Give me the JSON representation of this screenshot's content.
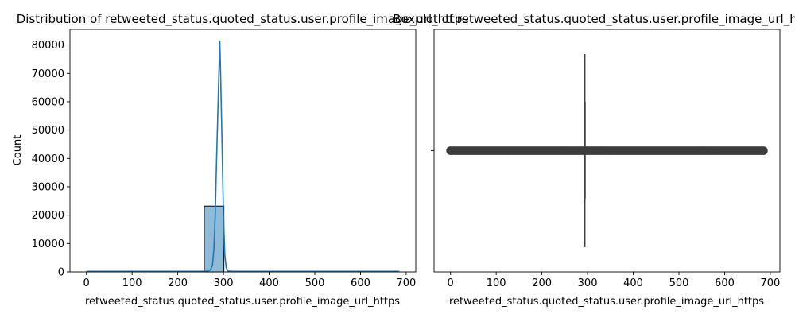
{
  "figure": {
    "background": "#ffffff"
  },
  "chart_data": [
    {
      "type": "bar",
      "subtype": "histogram-with-kde",
      "title": "Distribution of retweeted_status.quoted_status.user.profile_image_url_https",
      "xlabel": "retweeted_status.quoted_status.user.profile_image_url_https",
      "ylabel": "Count",
      "xlim": [
        -36,
        721
      ],
      "ylim": [
        0,
        85500
      ],
      "xticks": [
        0,
        100,
        200,
        300,
        400,
        500,
        600,
        700
      ],
      "yticks": [
        0,
        10000,
        20000,
        30000,
        40000,
        50000,
        60000,
        70000,
        80000
      ],
      "grid": false,
      "bar_color": "#1f77b4",
      "bar_fill_opacity": 0.5,
      "line_color": "#1f77b4",
      "bins": [
        {
          "x0": 0,
          "x1": 43,
          "count": 0
        },
        {
          "x0": 43,
          "x1": 86,
          "count": 0
        },
        {
          "x0": 86,
          "x1": 129,
          "count": 0
        },
        {
          "x0": 129,
          "x1": 172,
          "count": 0
        },
        {
          "x0": 172,
          "x1": 215,
          "count": 0
        },
        {
          "x0": 215,
          "x1": 258,
          "count": 0
        },
        {
          "x0": 258,
          "x1": 301,
          "count": 23200
        },
        {
          "x0": 301,
          "x1": 344,
          "count": 0
        },
        {
          "x0": 344,
          "x1": 387,
          "count": 0
        },
        {
          "x0": 387,
          "x1": 430,
          "count": 0
        },
        {
          "x0": 430,
          "x1": 473,
          "count": 0
        },
        {
          "x0": 473,
          "x1": 516,
          "count": 0
        },
        {
          "x0": 516,
          "x1": 559,
          "count": 0
        },
        {
          "x0": 559,
          "x1": 602,
          "count": 0
        },
        {
          "x0": 602,
          "x1": 645,
          "count": 0
        },
        {
          "x0": 645,
          "x1": 688,
          "count": 0
        }
      ],
      "kde": {
        "x": [
          0,
          100,
          200,
          250,
          265,
          272,
          276,
          279,
          282,
          285,
          288,
          290,
          292,
          294,
          297,
          300,
          303,
          306,
          310,
          320,
          400,
          500,
          600,
          685
        ],
        "y": [
          200,
          200,
          200,
          200,
          250,
          800,
          2500,
          8000,
          20000,
          40000,
          58000,
          70000,
          81500,
          68000,
          45000,
          20000,
          6000,
          1500,
          300,
          200,
          200,
          200,
          200,
          200
        ]
      }
    },
    {
      "type": "boxplot",
      "title": "Boxplot of retweeted_status.quoted_status.user.profile_image_url_https",
      "xlabel": "retweeted_status.quoted_status.user.profile_image_url_https",
      "ylabel": "",
      "xlim": [
        -36,
        721
      ],
      "xticks": [
        0,
        100,
        200,
        300,
        400,
        500,
        600,
        700
      ],
      "grid": false,
      "color": "#3d3d3d",
      "median": 294,
      "q1": 294,
      "q3": 294,
      "whisker_low": 294,
      "whisker_high": 294,
      "outlier_range": [
        0,
        685
      ]
    }
  ]
}
